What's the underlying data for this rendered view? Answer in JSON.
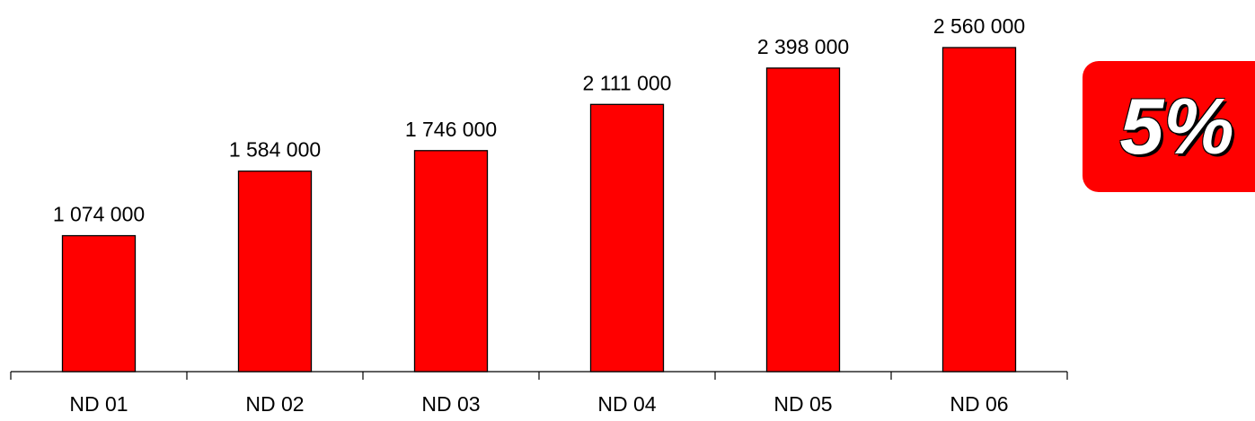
{
  "chart_data": {
    "type": "bar",
    "categories": [
      "ND 01",
      "ND 02",
      "ND 03",
      "ND 04",
      "ND 05",
      "ND 06"
    ],
    "values": [
      1074000,
      1584000,
      1746000,
      2111000,
      2398000,
      2560000
    ],
    "value_labels": [
      "1 074 000",
      "1 584 000",
      "1 746 000",
      "2 111 000",
      "2 398 000",
      "2 560 000"
    ],
    "ylim": [
      0,
      2800000
    ],
    "bar_color": "#ff0000",
    "grid": false
  },
  "badge": {
    "text": "5%",
    "color": "#ff0000"
  }
}
